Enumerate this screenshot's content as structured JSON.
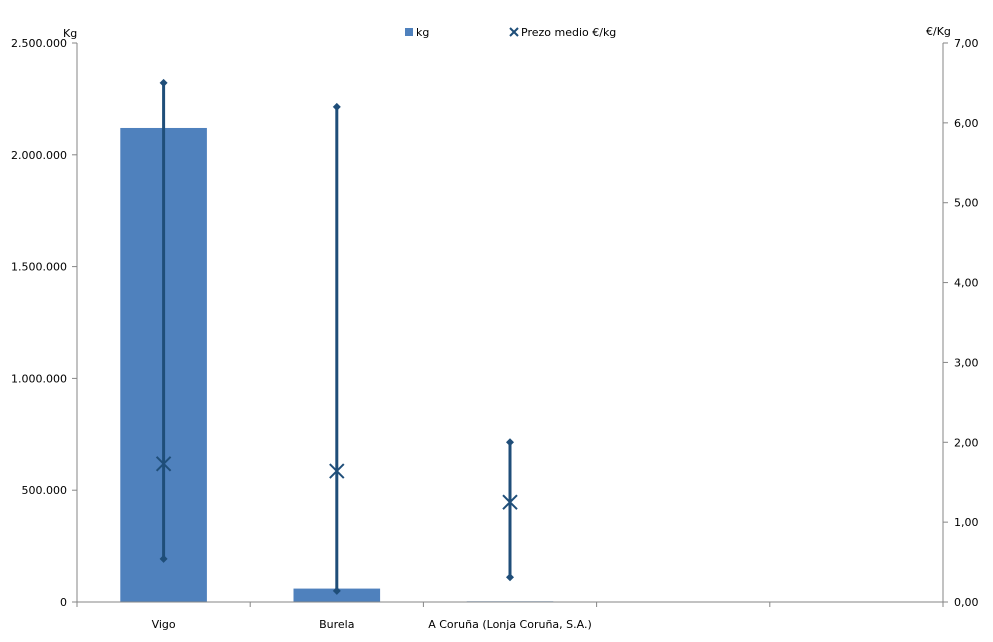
{
  "chart_data": {
    "type": "bar",
    "title": "",
    "categories": [
      "Vigo",
      "Burela",
      "A Coruña (Lonja Coruña, S.A.)",
      "",
      ""
    ],
    "series": [
      {
        "name": "kg",
        "type": "bar",
        "axis": "left",
        "color": "#4f81bd",
        "values": [
          2120000,
          60000,
          3000,
          null,
          null
        ]
      },
      {
        "name": "Prezo medio €/kg",
        "type": "marker",
        "axis": "right",
        "color": "#1f4e79",
        "values": [
          1.73,
          1.64,
          1.25,
          null,
          null
        ],
        "max": [
          6.5,
          6.2,
          2.0,
          null,
          null
        ],
        "min": [
          0.54,
          0.14,
          0.31,
          null,
          null
        ]
      }
    ],
    "y_left": {
      "label": "Kg",
      "range": [
        0,
        2500000
      ],
      "ticks": [
        "0",
        "500.000",
        "1.000.000",
        "1.500.000",
        "2.000.000",
        "2.500.000"
      ]
    },
    "y_right": {
      "label": "€/Kg",
      "range": [
        0,
        7
      ],
      "ticks": [
        "0,00",
        "1,00",
        "2,00",
        "3,00",
        "4,00",
        "5,00",
        "6,00",
        "7,00"
      ]
    },
    "legend": {
      "position": "top",
      "entries": [
        "kg",
        "Prezo medio €/kg"
      ]
    },
    "grid": false
  }
}
